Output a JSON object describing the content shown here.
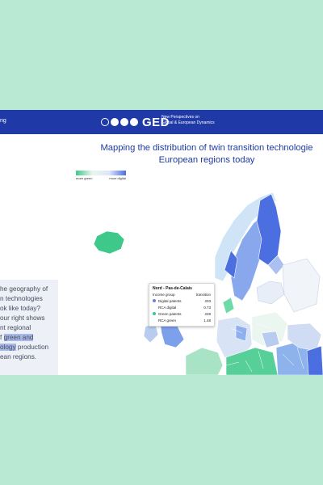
{
  "header": {
    "breadcrumb": "ng",
    "logo_text": "GED",
    "tagline": [
      "New Perspectives on",
      "Global & European Dynamics"
    ]
  },
  "title": [
    "Mapping the distribution of twin transition technologie",
    "European regions today"
  ],
  "legend": {
    "left_label": "more green",
    "right_label": "more digital"
  },
  "intro": {
    "lines": [
      "he geography of",
      "n technologies",
      "ok like today?",
      "our right shows",
      "nt regional"
    ],
    "line6_prefix": "f ",
    "line6_highlight": "green and",
    "line7_highlight": "ology",
    "line7_suffix": " production",
    "line8": "ean regions."
  },
  "tooltip": {
    "title": "Nord - Pas-de-Calais",
    "header_left": "Income group",
    "header_right": "transition",
    "rows": [
      {
        "label": "Digital patents",
        "value": "203",
        "dot": "#6f7fd8"
      },
      {
        "label": "RCA digital",
        "value": "0.73",
        "dot": ""
      },
      {
        "label": "Green patents",
        "value": "228",
        "dot": "#3ec98a"
      },
      {
        "label": "RCA green",
        "value": "1.48",
        "dot": ""
      }
    ]
  },
  "colors": {
    "background": "#b9e9d2",
    "header": "#1f39a6",
    "title": "#1f39a6",
    "green": "#3ec98a",
    "digital": "#4b6ee0"
  }
}
